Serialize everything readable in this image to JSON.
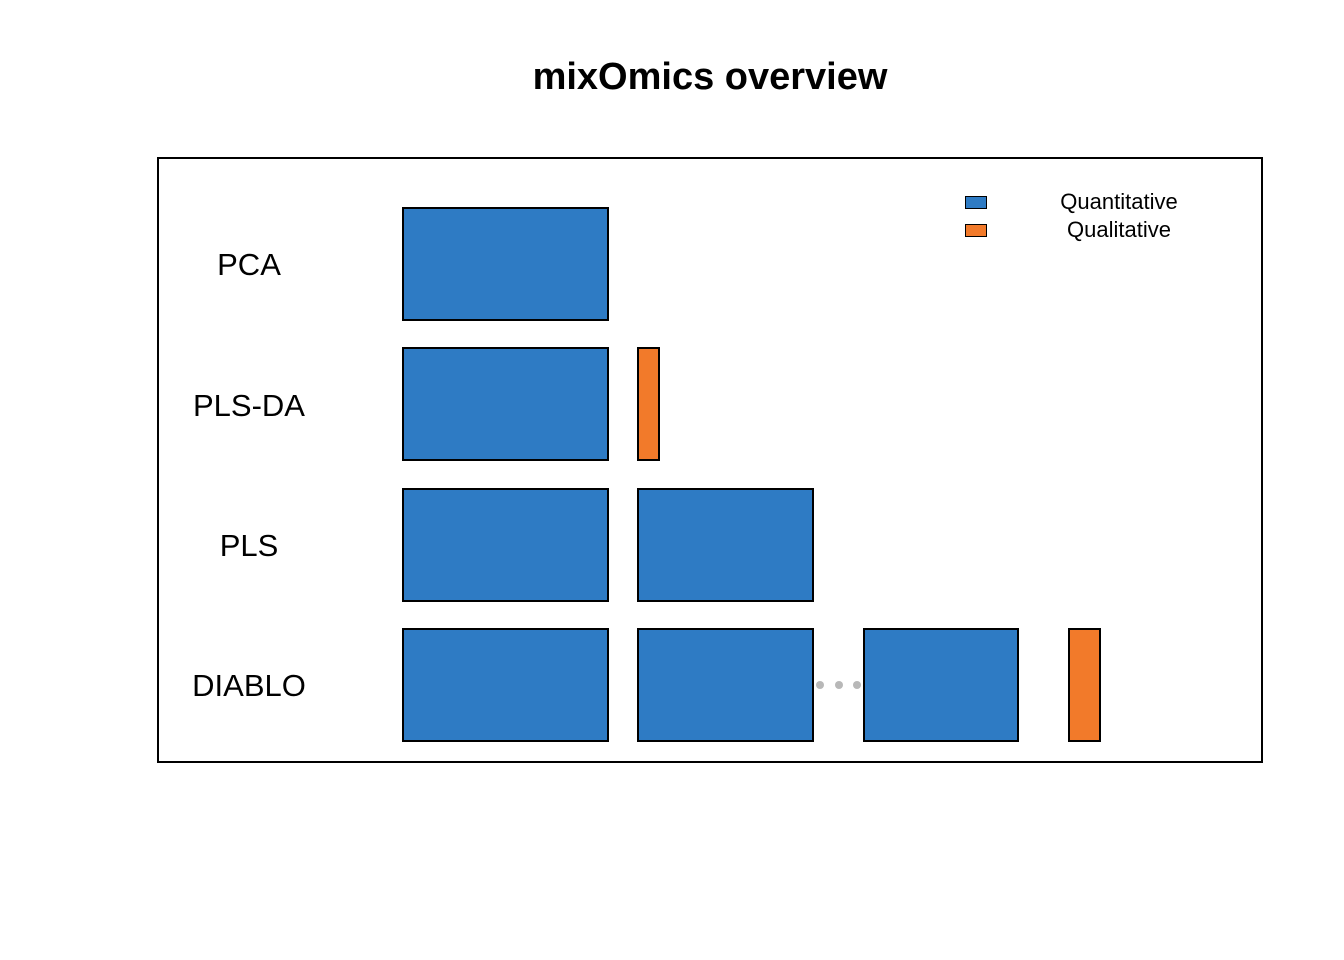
{
  "title": "mixOmics overview",
  "colors": {
    "quantitative": "#2e7bc4",
    "qualitative": "#f27a2a"
  },
  "legend": {
    "items": [
      {
        "label": "Quantitative",
        "type": "quantitative"
      },
      {
        "label": "Qualitative",
        "type": "qualitative"
      }
    ]
  },
  "rows": [
    {
      "label": "PCA",
      "blocks": [
        "quantitative"
      ]
    },
    {
      "label": "PLS-DA",
      "blocks": [
        "quantitative",
        "qualitative"
      ]
    },
    {
      "label": "PLS",
      "blocks": [
        "quantitative",
        "quantitative"
      ]
    },
    {
      "label": "DIABLO",
      "blocks": [
        "quantitative",
        "quantitative",
        "quantitative",
        "qualitative"
      ],
      "ellipsis": "···"
    }
  ]
}
